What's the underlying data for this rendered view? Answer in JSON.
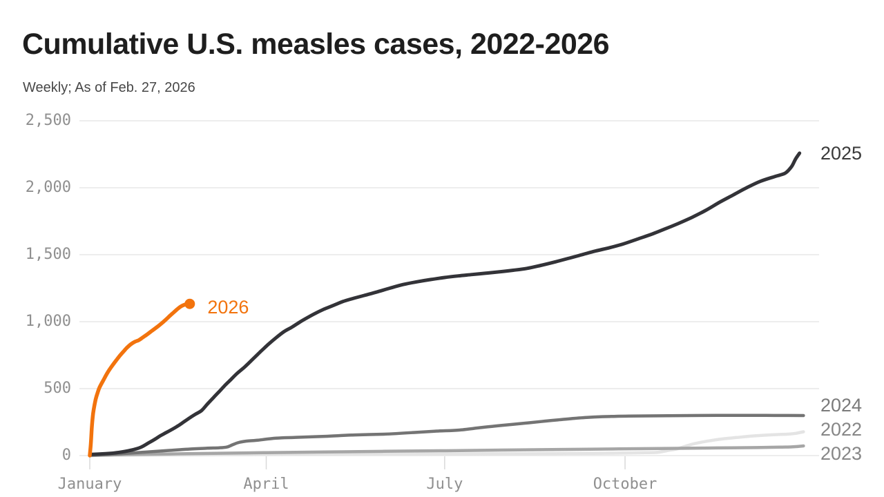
{
  "header": {
    "title": "Cumulative U.S. measles cases, 2022-2026",
    "subtitle": "Weekly; As of Feb. 27, 2026"
  },
  "colors": {
    "background": "#ffffff",
    "title": "#1e1e1e",
    "subtitle": "#474747",
    "gridline": "#e7e7e7",
    "tick_mark": "#d9d9d9",
    "axis_text": "#8f8f8f",
    "accent_orange": "#f2730d"
  },
  "chart_data": {
    "type": "line",
    "title": "Cumulative U.S. measles cases, 2022-2026",
    "subtitle": "Weekly; As of Feb. 27, 2026",
    "xlabel": "",
    "ylabel": "",
    "ylim": [
      0,
      2500
    ],
    "x_unit": "day-of-year",
    "xlim": [
      0,
      365
    ],
    "grid": "horizontal-only",
    "legend_position": "direct-labels-on-lines",
    "y_ticks": [
      {
        "value": 0,
        "label": "0"
      },
      {
        "value": 500,
        "label": "500"
      },
      {
        "value": 1000,
        "label": "1,000"
      },
      {
        "value": 1500,
        "label": "1,500"
      },
      {
        "value": 2000,
        "label": "2,000"
      },
      {
        "value": 2500,
        "label": "2,500"
      }
    ],
    "x_ticks": [
      {
        "day": 0,
        "label": "January"
      },
      {
        "day": 90,
        "label": "April"
      },
      {
        "day": 181,
        "label": "July"
      },
      {
        "day": 273,
        "label": "October"
      }
    ],
    "series": [
      {
        "name": "2022",
        "color": "#e4e4e4",
        "label_color": "#868686",
        "stroke_width": 4.5,
        "end_dot": false,
        "label_side": "right",
        "label_y_value": 196,
        "points": [
          [
            0,
            2
          ],
          [
            50,
            5
          ],
          [
            100,
            8
          ],
          [
            150,
            10
          ],
          [
            200,
            13
          ],
          [
            250,
            16
          ],
          [
            275,
            19
          ],
          [
            285,
            22
          ],
          [
            290,
            25
          ],
          [
            295,
            38
          ],
          [
            300,
            52
          ],
          [
            306,
            80
          ],
          [
            312,
            100
          ],
          [
            318,
            115
          ],
          [
            324,
            127
          ],
          [
            330,
            135
          ],
          [
            336,
            144
          ],
          [
            342,
            150
          ],
          [
            348,
            155
          ],
          [
            353,
            158
          ],
          [
            357,
            161
          ],
          [
            360,
            166
          ],
          [
            364,
            178
          ]
        ]
      },
      {
        "name": "2023",
        "color": "#a6a6a6",
        "label_color": "#868686",
        "stroke_width": 4.5,
        "end_dot": false,
        "label_side": "right",
        "label_y_value": 16,
        "points": [
          [
            0,
            0
          ],
          [
            20,
            8
          ],
          [
            40,
            12
          ],
          [
            60,
            16
          ],
          [
            90,
            22
          ],
          [
            120,
            27
          ],
          [
            150,
            32
          ],
          [
            180,
            36
          ],
          [
            210,
            41
          ],
          [
            240,
            46
          ],
          [
            270,
            50
          ],
          [
            300,
            54
          ],
          [
            320,
            57
          ],
          [
            340,
            60
          ],
          [
            352,
            63
          ],
          [
            358,
            65
          ],
          [
            364,
            72
          ]
        ]
      },
      {
        "name": "2024",
        "color": "#747474",
        "label_color": "#7a7a7a",
        "stroke_width": 4.5,
        "end_dot": false,
        "label_side": "right",
        "label_y_value": 376,
        "points": [
          [
            0,
            3
          ],
          [
            10,
            10
          ],
          [
            20,
            18
          ],
          [
            30,
            28
          ],
          [
            40,
            38
          ],
          [
            50,
            48
          ],
          [
            60,
            55
          ],
          [
            66,
            58
          ],
          [
            70,
            64
          ],
          [
            73,
            82
          ],
          [
            76,
            98
          ],
          [
            80,
            108
          ],
          [
            85,
            114
          ],
          [
            95,
            130
          ],
          [
            105,
            136
          ],
          [
            120,
            144
          ],
          [
            135,
            154
          ],
          [
            150,
            160
          ],
          [
            165,
            172
          ],
          [
            177,
            183
          ],
          [
            188,
            190
          ],
          [
            200,
            210
          ],
          [
            212,
            228
          ],
          [
            224,
            245
          ],
          [
            232,
            257
          ],
          [
            239,
            267
          ],
          [
            247,
            278
          ],
          [
            255,
            286
          ],
          [
            263,
            291
          ],
          [
            275,
            295
          ],
          [
            295,
            298
          ],
          [
            320,
            300
          ],
          [
            345,
            300
          ],
          [
            364,
            299
          ]
        ]
      },
      {
        "name": "2025",
        "color": "#333338",
        "label_color": "#3a3a3a",
        "stroke_width": 5,
        "end_dot": false,
        "label_side": "right",
        "label_y_value": 2258,
        "points": [
          [
            0,
            8
          ],
          [
            8,
            14
          ],
          [
            15,
            24
          ],
          [
            21,
            40
          ],
          [
            26,
            62
          ],
          [
            30,
            95
          ],
          [
            33,
            120
          ],
          [
            36,
            148
          ],
          [
            39,
            172
          ],
          [
            42,
            196
          ],
          [
            45,
            222
          ],
          [
            48,
            252
          ],
          [
            51,
            282
          ],
          [
            54,
            310
          ],
          [
            57,
            336
          ],
          [
            60,
            385
          ],
          [
            63,
            432
          ],
          [
            66,
            478
          ],
          [
            69,
            525
          ],
          [
            72,
            568
          ],
          [
            75,
            612
          ],
          [
            79,
            662
          ],
          [
            83,
            718
          ],
          [
            87,
            775
          ],
          [
            91,
            830
          ],
          [
            95,
            880
          ],
          [
            99,
            925
          ],
          [
            103,
            958
          ],
          [
            107,
            996
          ],
          [
            111,
            1030
          ],
          [
            115,
            1062
          ],
          [
            119,
            1090
          ],
          [
            124,
            1120
          ],
          [
            129,
            1150
          ],
          [
            134,
            1172
          ],
          [
            140,
            1196
          ],
          [
            146,
            1220
          ],
          [
            153,
            1250
          ],
          [
            160,
            1278
          ],
          [
            167,
            1298
          ],
          [
            174,
            1315
          ],
          [
            181,
            1330
          ],
          [
            188,
            1342
          ],
          [
            195,
            1352
          ],
          [
            202,
            1362
          ],
          [
            209,
            1372
          ],
          [
            216,
            1384
          ],
          [
            223,
            1398
          ],
          [
            230,
            1420
          ],
          [
            237,
            1445
          ],
          [
            244,
            1472
          ],
          [
            251,
            1500
          ],
          [
            258,
            1528
          ],
          [
            265,
            1552
          ],
          [
            272,
            1580
          ],
          [
            279,
            1615
          ],
          [
            286,
            1650
          ],
          [
            293,
            1690
          ],
          [
            300,
            1732
          ],
          [
            307,
            1778
          ],
          [
            314,
            1830
          ],
          [
            321,
            1890
          ],
          [
            328,
            1945
          ],
          [
            335,
            2000
          ],
          [
            342,
            2048
          ],
          [
            349,
            2082
          ],
          [
            352,
            2095
          ],
          [
            355,
            2112
          ],
          [
            358,
            2160
          ],
          [
            360,
            2215
          ],
          [
            362,
            2258
          ]
        ]
      },
      {
        "name": "2026",
        "color": "#f2730d",
        "label_color": "#f2730d",
        "stroke_width": 5.5,
        "end_dot": true,
        "end_dot_radius": 7.5,
        "label_side": "inline",
        "label_day": 60,
        "label_y_value": 1108,
        "points": [
          [
            0,
            0
          ],
          [
            0.5,
            80
          ],
          [
            1,
            200
          ],
          [
            1.5,
            290
          ],
          [
            2,
            345
          ],
          [
            3,
            420
          ],
          [
            4,
            470
          ],
          [
            5,
            510
          ],
          [
            7,
            565
          ],
          [
            9,
            618
          ],
          [
            11,
            662
          ],
          [
            13,
            702
          ],
          [
            15,
            740
          ],
          [
            17,
            774
          ],
          [
            19,
            806
          ],
          [
            21,
            832
          ],
          [
            23,
            850
          ],
          [
            25,
            862
          ],
          [
            27,
            882
          ],
          [
            29,
            902
          ],
          [
            31,
            924
          ],
          [
            33,
            946
          ],
          [
            35,
            968
          ],
          [
            37,
            992
          ],
          [
            39,
            1018
          ],
          [
            41,
            1046
          ],
          [
            43,
            1072
          ],
          [
            45,
            1098
          ],
          [
            47,
            1118
          ],
          [
            49,
            1130
          ],
          [
            51,
            1133
          ]
        ]
      }
    ]
  }
}
